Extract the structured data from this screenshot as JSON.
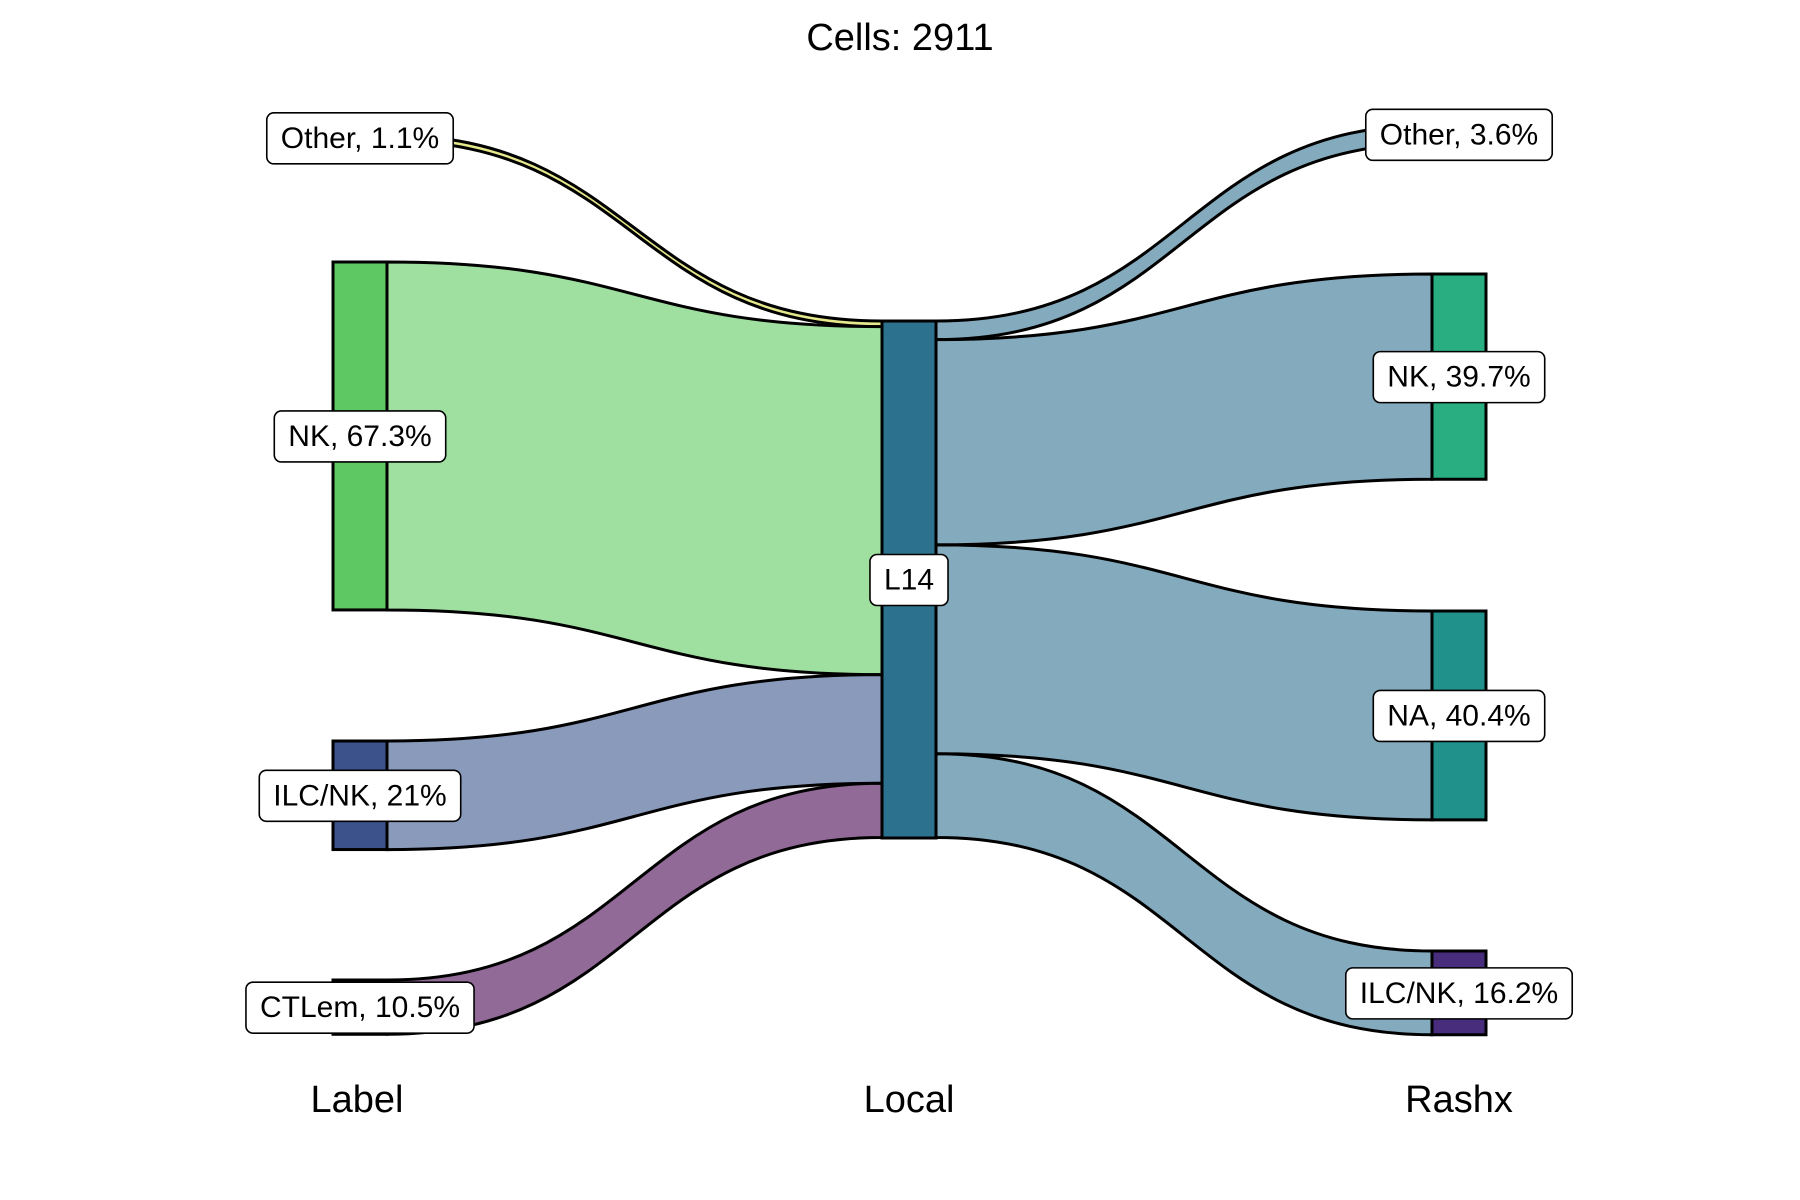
{
  "title": "Cells:  2911",
  "axes": {
    "left": "Label",
    "middle": "Local",
    "right": "Rashx"
  },
  "chart_data": {
    "type": "sankey",
    "total": 2911,
    "stages": [
      "Label",
      "Local",
      "Rashx"
    ],
    "nodes": {
      "left": [
        {
          "id": "other",
          "label": "Other, 1.1%",
          "percent": 1.1,
          "color": "#d8e219"
        },
        {
          "id": "nk",
          "label": "NK, 67.3%",
          "percent": 67.3,
          "color": "#5ec962"
        },
        {
          "id": "ilcnk",
          "label": "ILC/NK, 21%",
          "percent": 21.0,
          "color": "#3b528b"
        },
        {
          "id": "ctlem",
          "label": "CTLem, 10.5%",
          "percent": 10.5,
          "color": "#8e6298"
        }
      ],
      "middle": [
        {
          "id": "l14",
          "label": "L14",
          "percent": 100,
          "color": "#2c728e"
        }
      ],
      "right": [
        {
          "id": "other",
          "label": "Other, 3.6%",
          "percent": 3.6,
          "color": "#84aabd"
        },
        {
          "id": "nk",
          "label": "NK, 39.7%",
          "percent": 39.7,
          "color": "#28ae80"
        },
        {
          "id": "na",
          "label": "NA, 40.4%",
          "percent": 40.4,
          "color": "#21918c"
        },
        {
          "id": "ilcnk",
          "label": "ILC/NK, 16.2%",
          "percent": 16.2,
          "color": "#472d7b"
        }
      ]
    },
    "flow_colors": {
      "other": "#e6e88c",
      "nk": "#9fdfa0",
      "ilcnk": "#8a9abb",
      "ctlem": "#926a98",
      "right": "#84aabd"
    }
  }
}
